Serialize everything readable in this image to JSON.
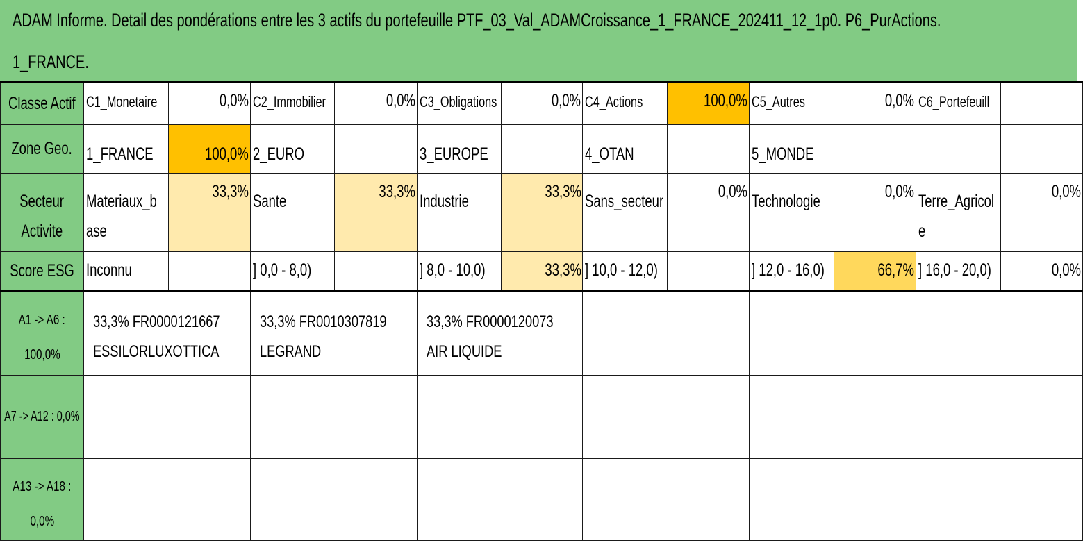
{
  "title": {
    "line1": "ADAM Informe. Detail des pondérations entre les 3 actifs du portefeuille PTF_03_Val_ADAMCroissance_1_FRANCE_202411_12_1p0. P6_PurActions.",
    "line2": "1_FRANCE."
  },
  "classe": {
    "label": "Classe Actif",
    "items": [
      {
        "name": "C1_Monetaire",
        "value": "0,0%"
      },
      {
        "name": "C2_Immobilier",
        "value": "0,0%"
      },
      {
        "name": "C3_Obligations",
        "value": "0,0%"
      },
      {
        "name": "C4_Actions",
        "value": "100,0%"
      },
      {
        "name": "C5_Autres",
        "value": "0,0%"
      },
      {
        "name": "C6_Portefeuill",
        "value": ""
      }
    ]
  },
  "zone": {
    "label": "Zone Geo.",
    "items": [
      {
        "name": "1_FRANCE",
        "value": "100,0%"
      },
      {
        "name": "2_EURO",
        "value": ""
      },
      {
        "name": "3_EUROPE",
        "value": ""
      },
      {
        "name": "4_OTAN",
        "value": ""
      },
      {
        "name": "5_MONDE",
        "value": ""
      },
      {
        "name": "",
        "value": ""
      }
    ]
  },
  "secteur": {
    "label_line1": "Secteur",
    "label_line2": "Activite",
    "items": [
      {
        "name_line1": "Materiaux_b",
        "name_line2": "ase",
        "value": "33,3%"
      },
      {
        "name_line1": "Sante",
        "name_line2": "",
        "value": "33,3%"
      },
      {
        "name_line1": "Industrie",
        "name_line2": "",
        "value": "33,3%"
      },
      {
        "name_line1": "Sans_secteur",
        "name_line2": "",
        "value": "0,0%"
      },
      {
        "name_line1": "Technologie",
        "name_line2": "",
        "value": "0,0%"
      },
      {
        "name_line1": "Terre_Agricol",
        "name_line2": "e",
        "value": "0,0%"
      }
    ]
  },
  "esg": {
    "label": "Score ESG",
    "items": [
      {
        "name": "Inconnu",
        "value": ""
      },
      {
        "name": "] 0,0 - 8,0)",
        "value": ""
      },
      {
        "name": "] 8,0 - 10,0)",
        "value": "33,3%"
      },
      {
        "name": "] 10,0 - 12,0)",
        "value": ""
      },
      {
        "name": "] 12,0 - 16,0)",
        "value": "66,7%"
      },
      {
        "name": "] 16,0 - 20,0)",
        "value": "0,0%"
      }
    ]
  },
  "assets": {
    "group1_line1": "A1 -> A6 :",
    "group1_line2": "100,0%",
    "group2": "A7 -> A12 : 0,0%",
    "group3_line1": "A13 -> A18 :",
    "group3_line2": "0,0%",
    "items": [
      {
        "line1": "33,3% FR0000121667",
        "line2": "ESSILORLUXOTTICA"
      },
      {
        "line1": "33,3% FR0010307819",
        "line2": "LEGRAND"
      },
      {
        "line1": "33,3% FR0000120073",
        "line2": "AIR LIQUIDE"
      }
    ]
  },
  "colors": {
    "header_green": "#82cb84",
    "highlight_full": "#ffc000",
    "highlight_light": "#ffeaad",
    "highlight_mid": "#ffd85c"
  }
}
